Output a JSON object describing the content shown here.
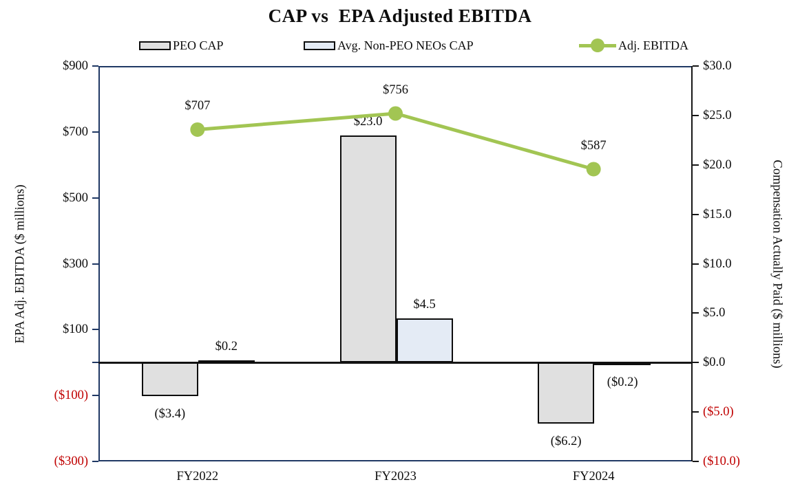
{
  "title": "CAP vs  EPA Adjusted EBITDA",
  "chart_data": {
    "type": "bar",
    "subtype": "combo bar + line, dual axis",
    "title": "CAP vs  EPA Adjusted EBITDA",
    "categories": [
      "FY2022",
      "FY2023",
      "FY2024"
    ],
    "series": [
      {
        "name": "PEO CAP",
        "type": "bar",
        "axis": "right",
        "color": "#e0e0e0",
        "values": [
          -3.4,
          23.0,
          -6.2
        ],
        "labels": [
          "($3.4)",
          "$23.0",
          "($6.2)"
        ]
      },
      {
        "name": "Avg. Non-PEO NEOs CAP",
        "type": "bar",
        "axis": "right",
        "color": "#e4ebf5",
        "values": [
          0.2,
          4.5,
          -0.2
        ],
        "labels": [
          "$0.2",
          "$4.5",
          "($0.2)"
        ]
      },
      {
        "name": "Adj. EBITDA",
        "type": "line",
        "axis": "left",
        "color": "#a2c553",
        "values": [
          707,
          756,
          587
        ],
        "labels": [
          "$707",
          "$756",
          "$587"
        ]
      }
    ],
    "left_axis": {
      "title": "EPA Adj. EBITDA ($ millions)",
      "min": -300,
      "max": 900,
      "ticks": [
        {
          "value": 900,
          "label": "$900"
        },
        {
          "value": 700,
          "label": "$700"
        },
        {
          "value": 500,
          "label": "$500"
        },
        {
          "value": 300,
          "label": "$300"
        },
        {
          "value": 100,
          "label": "$100"
        },
        {
          "value": 0,
          "label": ""
        },
        {
          "value": -100,
          "label": "($100)",
          "negative": true
        },
        {
          "value": -300,
          "label": "($300)",
          "negative": true
        }
      ]
    },
    "right_axis": {
      "title": "Compensation Actually Paid ($ millions)",
      "min": -10,
      "max": 30,
      "ticks": [
        {
          "value": 30,
          "label": "$30.0"
        },
        {
          "value": 25,
          "label": "$25.0"
        },
        {
          "value": 20,
          "label": "$20.0"
        },
        {
          "value": 15,
          "label": "$15.0"
        },
        {
          "value": 10,
          "label": "$10.0"
        },
        {
          "value": 5,
          "label": "$5.0"
        },
        {
          "value": 0,
          "label": "$0.0"
        },
        {
          "value": -5,
          "label": "($5.0)",
          "negative": true
        },
        {
          "value": -10,
          "label": "($10.0)",
          "negative": true
        }
      ]
    },
    "grid": false,
    "legend_position": "top",
    "colors": {
      "negative_label": "#c00000",
      "plot_border": "#1f3864",
      "zero_line": "#161616",
      "bar_border": "#0d0d0d"
    }
  }
}
